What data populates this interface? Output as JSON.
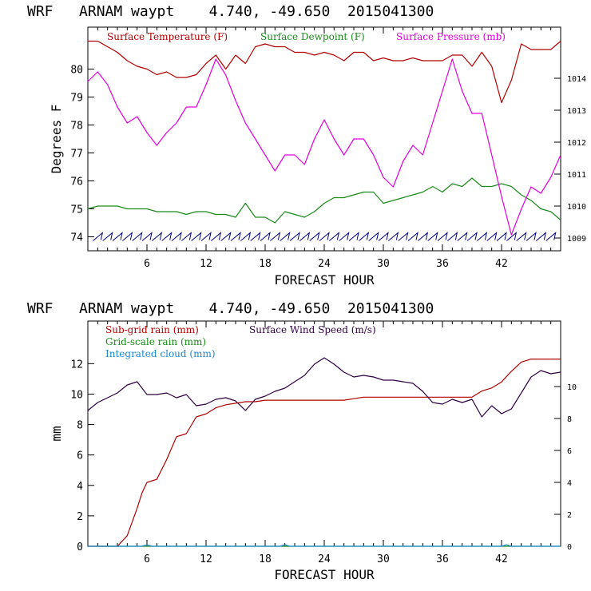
{
  "chart_data": [
    {
      "type": "line",
      "title": "WRF   ARNAM waypt    4.740, -49.650  2015041300",
      "xlabel": "FORECAST HOUR",
      "ylabel": "Degrees F",
      "xlim": [
        0,
        48
      ],
      "x_ticks": [
        6,
        12,
        18,
        24,
        30,
        36,
        42
      ],
      "ylim": [
        73.5,
        81.5
      ],
      "y_ticks": [
        74,
        75,
        76,
        77,
        78,
        79,
        80
      ],
      "y2lim": [
        1008.6,
        1015.6
      ],
      "y2_ticks": [
        1009,
        1010,
        1011,
        1012,
        1013,
        1014
      ],
      "legend": [
        {
          "label": "Surface Temperature (F)",
          "color": "#b00000"
        },
        {
          "label": "Surface Dewpoint (F)",
          "color": "#1a8a1a"
        },
        {
          "label": "Surface Pressure (mb)",
          "color": "#e000e0"
        }
      ],
      "series": [
        {
          "name": "Surface Temperature (F)",
          "color": "#b00000",
          "axis": "left",
          "x": [
            0,
            1,
            2,
            3,
            4,
            5,
            6,
            7,
            8,
            9,
            10,
            11,
            12,
            13,
            14,
            15,
            16,
            17,
            18,
            19,
            20,
            21,
            22,
            23,
            24,
            25,
            26,
            27,
            28,
            29,
            30,
            31,
            32,
            33,
            34,
            35,
            36,
            37,
            38,
            39,
            40,
            41,
            42,
            43,
            44,
            45,
            46,
            47,
            48
          ],
          "values": [
            81.0,
            81.0,
            80.8,
            80.6,
            80.3,
            80.1,
            80.0,
            79.8,
            79.9,
            79.7,
            79.7,
            79.8,
            80.2,
            80.5,
            80.0,
            80.5,
            80.2,
            80.8,
            80.9,
            80.8,
            80.8,
            80.6,
            80.6,
            80.5,
            80.6,
            80.5,
            80.3,
            80.6,
            80.6,
            80.3,
            80.4,
            80.3,
            80.3,
            80.4,
            80.3,
            80.3,
            80.3,
            80.5,
            80.5,
            80.1,
            80.6,
            80.1,
            78.8,
            79.6,
            80.9,
            80.7,
            80.7,
            80.7,
            81.0
          ]
        },
        {
          "name": "Surface Dewpoint (F)",
          "color": "#1a8a1a",
          "axis": "left",
          "x": [
            0,
            1,
            2,
            3,
            4,
            5,
            6,
            7,
            8,
            9,
            10,
            11,
            12,
            13,
            14,
            15,
            16,
            17,
            18,
            19,
            20,
            21,
            22,
            23,
            24,
            25,
            26,
            27,
            28,
            29,
            30,
            31,
            32,
            33,
            34,
            35,
            36,
            37,
            38,
            39,
            40,
            41,
            42,
            43,
            44,
            45,
            46,
            47,
            48
          ],
          "values": [
            75.0,
            75.1,
            75.1,
            75.1,
            75.0,
            75.0,
            75.0,
            74.9,
            74.9,
            74.9,
            74.8,
            74.9,
            74.9,
            74.8,
            74.8,
            74.7,
            75.2,
            74.7,
            74.7,
            74.5,
            74.9,
            74.8,
            74.7,
            74.9,
            75.2,
            75.4,
            75.4,
            75.5,
            75.6,
            75.6,
            75.2,
            75.3,
            75.4,
            75.5,
            75.6,
            75.8,
            75.6,
            75.9,
            75.8,
            76.1,
            75.8,
            75.8,
            75.9,
            75.8,
            75.5,
            75.3,
            75.0,
            74.9,
            74.6
          ]
        },
        {
          "name": "Surface Pressure (mb)",
          "color": "#e000e0",
          "axis": "right",
          "x": [
            0,
            1,
            2,
            3,
            4,
            5,
            6,
            7,
            8,
            9,
            10,
            11,
            12,
            13,
            14,
            15,
            16,
            17,
            18,
            19,
            20,
            21,
            22,
            23,
            24,
            25,
            26,
            27,
            28,
            29,
            30,
            31,
            32,
            33,
            34,
            35,
            36,
            37,
            38,
            39,
            40,
            41,
            42,
            43,
            44,
            45,
            46,
            47,
            48
          ],
          "values": [
            1013.9,
            1014.2,
            1013.8,
            1013.1,
            1012.6,
            1012.8,
            1012.3,
            1011.9,
            1012.3,
            1012.6,
            1013.1,
            1013.1,
            1013.8,
            1014.6,
            1014.1,
            1013.3,
            1012.6,
            1012.1,
            1011.6,
            1011.1,
            1011.6,
            1011.6,
            1011.3,
            1012.1,
            1012.7,
            1012.1,
            1011.6,
            1012.1,
            1012.1,
            1011.6,
            1010.9,
            1010.6,
            1011.4,
            1011.9,
            1011.6,
            1012.6,
            1013.6,
            1014.6,
            1013.6,
            1012.9,
            1012.9,
            1011.6,
            1010.3,
            1009.1,
            1009.9,
            1010.6,
            1010.4,
            1010.9,
            1011.6
          ]
        },
        {
          "name": "Surface Wind Barbs",
          "color": "#000080",
          "axis": "left",
          "style": "barbs",
          "x": [
            1,
            2,
            3,
            4,
            5,
            6,
            7,
            8,
            9,
            10,
            11,
            12,
            13,
            14,
            15,
            16,
            17,
            18,
            19,
            20,
            21,
            22,
            23,
            24,
            25,
            26,
            27,
            28,
            29,
            30,
            31,
            32,
            33,
            34,
            35,
            36,
            37,
            38,
            39,
            40,
            41,
            42,
            43,
            44,
            45,
            46,
            47
          ],
          "values": [
            74.0,
            74.0,
            74.0,
            74.0,
            74.0,
            74.0,
            74.0,
            74.0,
            74.0,
            74.0,
            74.0,
            74.0,
            74.0,
            74.0,
            74.0,
            74.0,
            74.0,
            74.0,
            74.0,
            74.0,
            74.0,
            74.0,
            74.0,
            74.0,
            74.0,
            74.0,
            74.0,
            74.0,
            74.0,
            74.0,
            74.0,
            74.0,
            74.0,
            74.0,
            74.0,
            74.0,
            74.0,
            74.0,
            74.0,
            74.0,
            74.0,
            74.0,
            74.0,
            74.0,
            74.0,
            74.0,
            74.0
          ]
        }
      ]
    },
    {
      "type": "line",
      "title": "WRF   ARNAM waypt    4.740, -49.650  2015041300",
      "xlabel": "FORECAST HOUR",
      "ylabel": "mm",
      "xlim": [
        0,
        48
      ],
      "x_ticks": [
        6,
        12,
        18,
        24,
        30,
        36,
        42
      ],
      "ylim": [
        0,
        14.8
      ],
      "y_ticks": [
        0,
        2,
        4,
        6,
        8,
        10,
        12
      ],
      "y2lim": [
        0,
        14.1
      ],
      "y2_ticks": [
        0,
        2,
        4,
        6,
        8,
        10
      ],
      "legend": [
        {
          "label": "Sub-grid rain (mm)",
          "color": "#b00000"
        },
        {
          "label": "Grid-scale rain (mm)",
          "color": "#1a8a1a"
        },
        {
          "label": "Integrated cloud (mm)",
          "color": "#1a8ad0"
        },
        {
          "label": "Surface Wind Speed (m/s)",
          "color": "#300040"
        }
      ],
      "series": [
        {
          "name": "Sub-grid rain (mm)",
          "color": "#b00000",
          "axis": "left",
          "x": [
            0,
            1,
            2,
            3,
            4,
            5,
            5.5,
            6,
            7,
            8,
            9,
            10,
            11,
            12,
            13,
            14,
            15,
            16,
            17,
            18,
            19,
            20,
            21,
            22,
            23,
            24,
            25,
            26,
            27,
            28,
            29,
            30,
            31,
            32,
            33,
            34,
            35,
            36,
            37,
            38,
            39,
            40,
            41,
            42,
            43,
            44,
            45,
            46,
            47,
            48
          ],
          "values": [
            0,
            0,
            0,
            0,
            0.7,
            2.5,
            3.5,
            4.2,
            4.4,
            5.7,
            7.2,
            7.4,
            8.5,
            8.7,
            9.1,
            9.3,
            9.4,
            9.5,
            9.5,
            9.6,
            9.6,
            9.6,
            9.6,
            9.6,
            9.6,
            9.6,
            9.6,
            9.6,
            9.7,
            9.8,
            9.8,
            9.8,
            9.8,
            9.8,
            9.8,
            9.8,
            9.8,
            9.8,
            9.8,
            9.8,
            9.8,
            10.2,
            10.4,
            10.8,
            11.5,
            12.1,
            12.3,
            12.3,
            12.3,
            12.3
          ]
        },
        {
          "name": "Grid-scale rain (mm)",
          "color": "#1a8a1a",
          "axis": "left",
          "x": [
            0,
            48
          ],
          "values": [
            0,
            0
          ]
        },
        {
          "name": "Integrated cloud (mm)",
          "color": "#1a8ad0",
          "axis": "left",
          "x": [
            0,
            5.5,
            6,
            6.5,
            19.5,
            20,
            20.5,
            42,
            42.5,
            43,
            48
          ],
          "values": [
            0,
            0,
            0.1,
            0,
            0,
            0.1,
            0,
            0,
            0.1,
            0,
            0
          ]
        },
        {
          "name": "Surface Wind Speed (m/s)",
          "color": "#300040",
          "axis": "right",
          "x": [
            0,
            1,
            2,
            3,
            4,
            5,
            6,
            7,
            8,
            9,
            10,
            11,
            12,
            13,
            14,
            15,
            16,
            17,
            18,
            19,
            20,
            21,
            22,
            23,
            24,
            25,
            26,
            27,
            28,
            29,
            30,
            31,
            32,
            33,
            34,
            35,
            36,
            37,
            38,
            39,
            40,
            41,
            42,
            43,
            44,
            45,
            46,
            47,
            48
          ],
          "values": [
            8.5,
            9.0,
            9.3,
            9.6,
            10.1,
            10.3,
            9.5,
            9.5,
            9.6,
            9.3,
            9.5,
            8.8,
            8.9,
            9.2,
            9.3,
            9.1,
            8.5,
            9.2,
            9.4,
            9.7,
            9.9,
            10.3,
            10.7,
            11.4,
            11.8,
            11.4,
            10.9,
            10.6,
            10.7,
            10.6,
            10.4,
            10.4,
            10.3,
            10.2,
            9.7,
            9.0,
            8.9,
            9.2,
            9.0,
            9.2,
            8.1,
            8.8,
            8.3,
            8.6,
            9.6,
            10.6,
            11.0,
            10.8,
            10.9
          ]
        }
      ]
    }
  ]
}
